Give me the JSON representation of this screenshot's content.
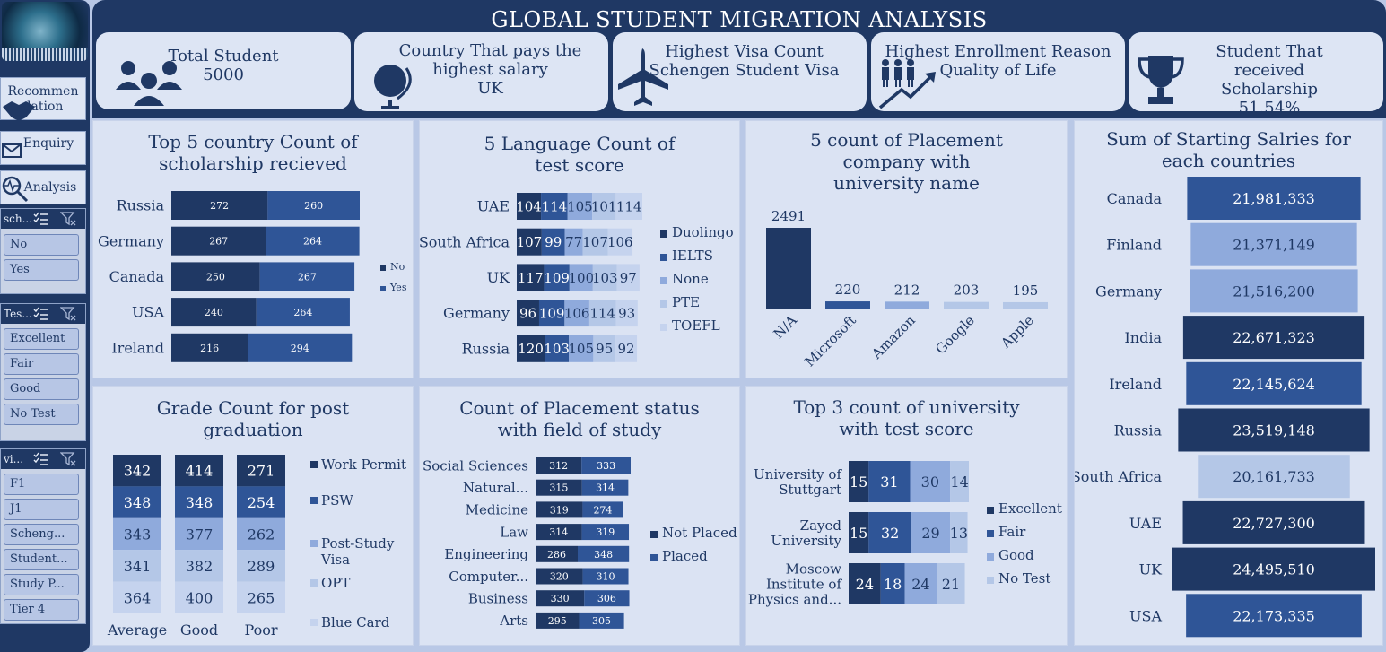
{
  "dashboard_title": "GLOBAL STUDENT MIGRATION ANALYSIS",
  "nav": {
    "recommendation": "Recommendation",
    "enquiry": "Enquiry",
    "analysis": "Analysis"
  },
  "slicers": [
    {
      "header": "sch...",
      "items": [
        "No",
        "Yes"
      ]
    },
    {
      "header": "Tes...",
      "items": [
        "Excellent",
        "Fair",
        "Good",
        "No Test"
      ]
    },
    {
      "header": "vi...",
      "items": [
        "F1",
        "J1",
        "Scheng...",
        "Student...",
        "Study P...",
        "Tier 4"
      ]
    }
  ],
  "kpis": [
    {
      "title": "Total Student",
      "value": "5000"
    },
    {
      "title": "Country That pays the highest salary",
      "value": "UK"
    },
    {
      "title": "Highest Visa Count",
      "value": "Schengen Student Visa"
    },
    {
      "title": "Highest Enrollment Reason",
      "value": "Quality of Life"
    },
    {
      "title": "Student That received Scholarship",
      "value": "51.54%"
    }
  ],
  "colors": {
    "dark": "#1f3864",
    "mid": "#2f5597",
    "light1": "#8faadc",
    "light2": "#b4c7e7",
    "bg": "#dbe3f3"
  },
  "chart_data": [
    {
      "type": "bar",
      "title": "Top 5 country Count of scholarship recieved",
      "orientation": "horizontal-stacked",
      "categories": [
        "Russia",
        "Germany",
        "Canada",
        "USA",
        "Ireland"
      ],
      "series": [
        {
          "name": "No",
          "values": [
            272,
            267,
            250,
            240,
            216
          ]
        },
        {
          "name": "Yes",
          "values": [
            260,
            264,
            267,
            264,
            294
          ]
        }
      ],
      "legend": "right"
    },
    {
      "type": "bar",
      "title": "5 Language Count of test score",
      "orientation": "horizontal-stacked",
      "categories": [
        "UAE",
        "South Africa",
        "UK",
        "Germany",
        "Russia"
      ],
      "series": [
        {
          "name": "Duolingo",
          "values": [
            104,
            107,
            117,
            96,
            120
          ]
        },
        {
          "name": "IELTS",
          "values": [
            114,
            99,
            109,
            109,
            103
          ]
        },
        {
          "name": "None",
          "values": [
            105,
            77,
            100,
            106,
            105
          ]
        },
        {
          "name": "PTE",
          "values": [
            101,
            107,
            103,
            114,
            95
          ]
        },
        {
          "name": "TOEFL",
          "values": [
            114,
            106,
            97,
            93,
            92
          ]
        }
      ],
      "legend": "right"
    },
    {
      "type": "bar",
      "title": "5 count of Placement company with university name",
      "categories": [
        "N/A",
        "Microsoft",
        "Amazon",
        "Google",
        "Apple"
      ],
      "values": [
        2491,
        220,
        212,
        203,
        195
      ]
    },
    {
      "type": "bar",
      "title": "Sum of Starting Salries for each countries",
      "orientation": "horizontal-centered",
      "categories": [
        "Canada",
        "Finland",
        "Germany",
        "India",
        "Ireland",
        "Russia",
        "South Africa",
        "UAE",
        "UK",
        "USA"
      ],
      "values": [
        21981333,
        21371149,
        21516200,
        22671323,
        22145624,
        23519148,
        20161733,
        22727300,
        24495510,
        22173335
      ],
      "labels": [
        "21,981,333",
        "21,371,149",
        "21,516,200",
        "22,671,323",
        "22,145,624",
        "23,519,148",
        "20,161,733",
        "22,727,300",
        "24,495,510",
        "22,173,335"
      ]
    },
    {
      "type": "bar",
      "title": "Grade Count for post graduation",
      "orientation": "vertical-stacked",
      "categories": [
        "Average",
        "Good",
        "Poor"
      ],
      "series": [
        {
          "name": "Work Permit",
          "values": [
            342,
            414,
            271
          ]
        },
        {
          "name": "PSW",
          "values": [
            348,
            348,
            254
          ]
        },
        {
          "name": "Post-Study Visa",
          "values": [
            343,
            377,
            262
          ]
        },
        {
          "name": "OPT",
          "values": [
            341,
            382,
            289
          ]
        },
        {
          "name": "Blue Card",
          "values": [
            364,
            400,
            265
          ]
        }
      ],
      "legend": "right"
    },
    {
      "type": "bar",
      "title": "Count of Placement status with field of study",
      "orientation": "horizontal-stacked",
      "categories": [
        "Social Sciences",
        "Natural...",
        "Medicine",
        "Law",
        "Engineering",
        "Computer...",
        "Business",
        "Arts"
      ],
      "series": [
        {
          "name": "Not Placed",
          "values": [
            312,
            315,
            319,
            314,
            286,
            320,
            330,
            295
          ]
        },
        {
          "name": "Placed",
          "values": [
            333,
            314,
            274,
            319,
            348,
            310,
            306,
            305
          ]
        }
      ],
      "legend": "right"
    },
    {
      "type": "bar",
      "title": "Top 3 count of university with test score",
      "orientation": "horizontal-stacked",
      "categories": [
        "University of Stuttgart",
        "Zayed University",
        "Moscow Institute of Physics and..."
      ],
      "series": [
        {
          "name": "Excellent",
          "values": [
            15,
            15,
            24
          ]
        },
        {
          "name": "Fair",
          "values": [
            31,
            32,
            18
          ]
        },
        {
          "name": "Good",
          "values": [
            30,
            29,
            24
          ]
        },
        {
          "name": "No Test",
          "values": [
            14,
            13,
            21
          ]
        }
      ],
      "legend": "right"
    }
  ]
}
